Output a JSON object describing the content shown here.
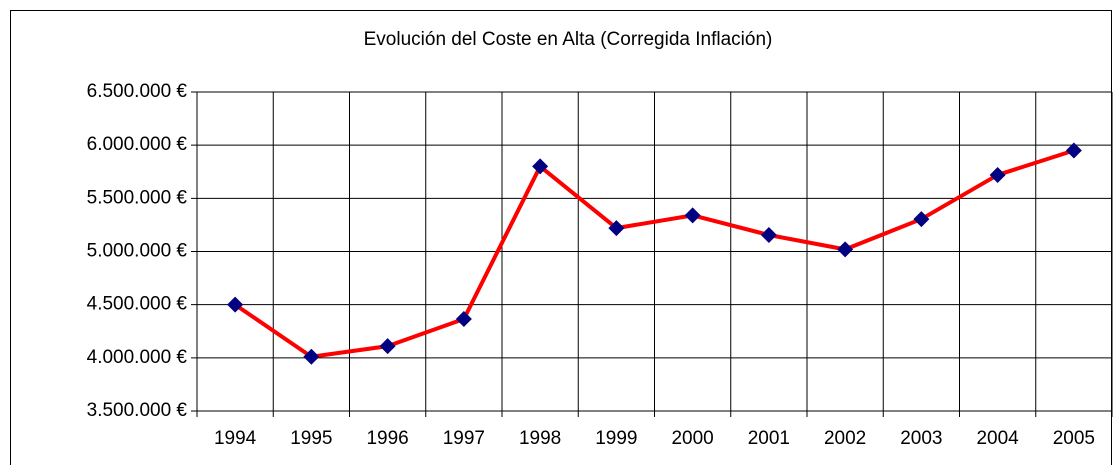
{
  "chart_data": {
    "type": "line",
    "title": "Evolución del Coste en Alta (Corregida Inflación)",
    "categories": [
      "1994",
      "1995",
      "1996",
      "1997",
      "1998",
      "1999",
      "2000",
      "2001",
      "2002",
      "2003",
      "2004",
      "2005"
    ],
    "series": [
      {
        "name": "Coste en Alta",
        "color": "#ff0000",
        "marker_color": "#000080",
        "values": [
          4500000,
          4010000,
          4110000,
          4365000,
          5800000,
          5220000,
          5340000,
          5155000,
          5020000,
          5305000,
          5720000,
          5950000
        ]
      }
    ],
    "ylim": [
      3500000,
      6500000
    ],
    "yticks": [
      {
        "value": 3500000,
        "label": "3.500.000 €"
      },
      {
        "value": 4000000,
        "label": "4.000.000 €"
      },
      {
        "value": 4500000,
        "label": "4.500.000 €"
      },
      {
        "value": 5000000,
        "label": "5.000.000 €"
      },
      {
        "value": 5500000,
        "label": "5.500.000 €"
      },
      {
        "value": 6000000,
        "label": "6.000.000 €"
      },
      {
        "value": 6500000,
        "label": "6.500.000 €"
      }
    ],
    "grid": true
  }
}
